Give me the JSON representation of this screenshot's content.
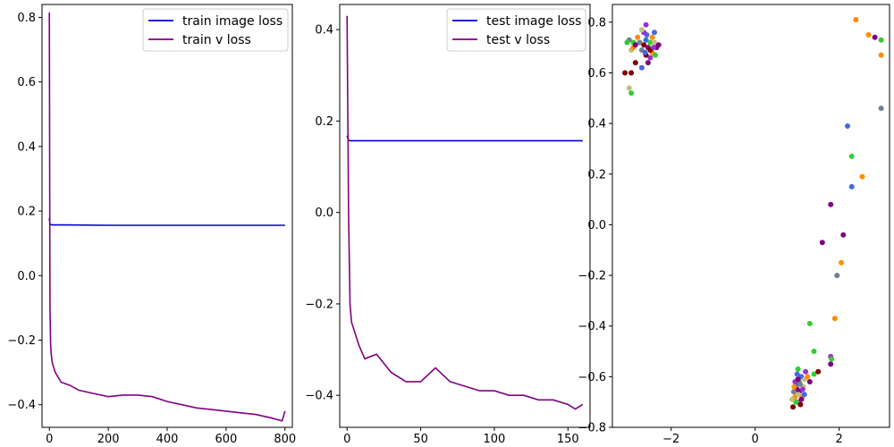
{
  "chart_data": [
    {
      "type": "line",
      "title": "",
      "xlabel": "",
      "ylabel": "",
      "xlim": [
        -25,
        825
      ],
      "ylim": [
        -0.47,
        0.84
      ],
      "xticks": [
        0,
        200,
        400,
        600,
        800
      ],
      "yticks": [
        -0.4,
        -0.2,
        0.0,
        0.2,
        0.4,
        0.6,
        0.8
      ],
      "grid": false,
      "legend": "upper right",
      "series": [
        {
          "name": "train image loss",
          "color": "#0000cc",
          "x": [
            0,
            2,
            5,
            10,
            50,
            200,
            400,
            600,
            800
          ],
          "y": [
            0.178,
            0.16,
            0.158,
            0.157,
            0.157,
            0.156,
            0.156,
            0.156,
            0.156
          ]
        },
        {
          "name": "train v loss",
          "color": "#800080",
          "x": [
            0,
            2,
            4,
            6,
            10,
            20,
            40,
            70,
            100,
            150,
            200,
            250,
            300,
            350,
            400,
            450,
            500,
            550,
            600,
            650,
            700,
            750,
            790,
            800
          ],
          "y": [
            0.815,
            -0.1,
            -0.21,
            -0.24,
            -0.27,
            -0.3,
            -0.33,
            -0.34,
            -0.355,
            -0.365,
            -0.375,
            -0.37,
            -0.37,
            -0.375,
            -0.39,
            -0.4,
            -0.41,
            -0.415,
            -0.42,
            -0.425,
            -0.43,
            -0.44,
            -0.45,
            -0.42
          ]
        }
      ]
    },
    {
      "type": "line",
      "title": "",
      "xlabel": "",
      "ylabel": "",
      "xlim": [
        -5,
        165
      ],
      "ylim": [
        -0.47,
        0.455
      ],
      "xticks": [
        0,
        50,
        100,
        150
      ],
      "yticks": [
        -0.4,
        -0.2,
        0.0,
        0.2,
        0.4
      ],
      "grid": false,
      "legend": "upper right",
      "series": [
        {
          "name": "test image loss",
          "color": "#0000cc",
          "x": [
            0,
            1,
            2,
            5,
            50,
            100,
            160
          ],
          "y": [
            0.168,
            0.158,
            0.157,
            0.157,
            0.157,
            0.157,
            0.157
          ]
        },
        {
          "name": "test v loss",
          "color": "#800080",
          "x": [
            0,
            1,
            2,
            3,
            5,
            8,
            12,
            20,
            30,
            40,
            50,
            60,
            70,
            80,
            90,
            100,
            110,
            120,
            130,
            140,
            150,
            155,
            160
          ],
          "y": [
            0.43,
            0.0,
            -0.2,
            -0.24,
            -0.26,
            -0.29,
            -0.32,
            -0.31,
            -0.35,
            -0.37,
            -0.37,
            -0.34,
            -0.37,
            -0.38,
            -0.39,
            -0.39,
            -0.4,
            -0.4,
            -0.41,
            -0.41,
            -0.42,
            -0.43,
            -0.42
          ]
        }
      ]
    },
    {
      "type": "scatter",
      "title": "",
      "xlabel": "",
      "ylabel": "",
      "xlim": [
        -3.4,
        3.2
      ],
      "ylim": [
        -0.8,
        0.87
      ],
      "xticks": [
        -2,
        0,
        2
      ],
      "yticks": [
        -0.8,
        -0.6,
        -0.4,
        -0.2,
        0.0,
        0.2,
        0.4,
        0.6,
        0.8
      ],
      "grid": false,
      "point_colors": [
        "#800080",
        "#4169e1",
        "#ff8c00",
        "#32cd32",
        "#708090",
        "#800000",
        "#c0c080",
        "#9932cc"
      ],
      "points": [
        {
          "x": -2.55,
          "y": 0.7,
          "c": 0
        },
        {
          "x": -2.6,
          "y": 0.73,
          "c": 1
        },
        {
          "x": -2.45,
          "y": 0.68,
          "c": 2
        },
        {
          "x": -2.5,
          "y": 0.72,
          "c": 3
        },
        {
          "x": -2.7,
          "y": 0.69,
          "c": 4
        },
        {
          "x": -2.65,
          "y": 0.71,
          "c": 5
        },
        {
          "x": -2.4,
          "y": 0.72,
          "c": 6
        },
        {
          "x": -2.5,
          "y": 0.66,
          "c": 7
        },
        {
          "x": -2.35,
          "y": 0.7,
          "c": 0
        },
        {
          "x": -2.58,
          "y": 0.75,
          "c": 1
        },
        {
          "x": -2.8,
          "y": 0.74,
          "c": 2
        },
        {
          "x": -2.9,
          "y": 0.72,
          "c": 3
        },
        {
          "x": -3.0,
          "y": 0.73,
          "c": 4
        },
        {
          "x": -2.95,
          "y": 0.69,
          "c": 6
        },
        {
          "x": -3.1,
          "y": 0.6,
          "c": 5
        },
        {
          "x": -2.95,
          "y": 0.6,
          "c": 5
        },
        {
          "x": -2.85,
          "y": 0.64,
          "c": 5
        },
        {
          "x": -2.7,
          "y": 0.62,
          "c": 1
        },
        {
          "x": -3.0,
          "y": 0.54,
          "c": 6
        },
        {
          "x": -2.95,
          "y": 0.52,
          "c": 3
        },
        {
          "x": -2.6,
          "y": 0.67,
          "c": 5
        },
        {
          "x": -2.65,
          "y": 0.76,
          "c": 7
        },
        {
          "x": -2.6,
          "y": 0.79,
          "c": 7
        },
        {
          "x": -2.4,
          "y": 0.76,
          "c": 1
        },
        {
          "x": -3.05,
          "y": 0.72,
          "c": 3
        },
        {
          "x": -2.9,
          "y": 0.7,
          "c": 2
        },
        {
          "x": -2.3,
          "y": 0.71,
          "c": 0
        },
        {
          "x": -2.75,
          "y": 0.72,
          "c": 4
        },
        {
          "x": -2.55,
          "y": 0.64,
          "c": 0
        },
        {
          "x": -2.45,
          "y": 0.74,
          "c": 2
        },
        {
          "x": -2.5,
          "y": 0.69,
          "c": 5
        },
        {
          "x": -2.7,
          "y": 0.77,
          "c": 6
        },
        {
          "x": -2.85,
          "y": 0.71,
          "c": 0
        },
        {
          "x": -2.38,
          "y": 0.67,
          "c": 3
        },
        {
          "x": -2.62,
          "y": 0.68,
          "c": 1
        },
        {
          "x": -2.42,
          "y": 0.7,
          "c": 7
        },
        {
          "x": 1.0,
          "y": -0.65,
          "c": 0
        },
        {
          "x": 1.1,
          "y": -0.6,
          "c": 1
        },
        {
          "x": 0.95,
          "y": -0.68,
          "c": 2
        },
        {
          "x": 1.05,
          "y": -0.62,
          "c": 3
        },
        {
          "x": 1.0,
          "y": -0.7,
          "c": 4
        },
        {
          "x": 0.9,
          "y": -0.72,
          "c": 5
        },
        {
          "x": 1.15,
          "y": -0.64,
          "c": 6
        },
        {
          "x": 1.2,
          "y": -0.58,
          "c": 7
        },
        {
          "x": 1.05,
          "y": -0.66,
          "c": 0
        },
        {
          "x": 0.98,
          "y": -0.63,
          "c": 1
        },
        {
          "x": 1.12,
          "y": -0.68,
          "c": 2
        },
        {
          "x": 1.02,
          "y": -0.57,
          "c": 3
        },
        {
          "x": 0.92,
          "y": -0.66,
          "c": 4
        },
        {
          "x": 1.08,
          "y": -0.71,
          "c": 5
        },
        {
          "x": 1.18,
          "y": -0.61,
          "c": 6
        },
        {
          "x": 0.95,
          "y": -0.62,
          "c": 7
        },
        {
          "x": 1.1,
          "y": -0.69,
          "c": 0
        },
        {
          "x": 1.0,
          "y": -0.59,
          "c": 1
        },
        {
          "x": 1.25,
          "y": -0.6,
          "c": 2
        },
        {
          "x": 1.3,
          "y": -0.62,
          "c": 0
        },
        {
          "x": 1.4,
          "y": -0.59,
          "c": 3
        },
        {
          "x": 1.5,
          "y": -0.58,
          "c": 5
        },
        {
          "x": 1.03,
          "y": -0.67,
          "c": 6
        },
        {
          "x": 0.97,
          "y": -0.7,
          "c": 3
        },
        {
          "x": 1.13,
          "y": -0.65,
          "c": 7
        },
        {
          "x": 1.07,
          "y": -0.63,
          "c": 4
        },
        {
          "x": 0.93,
          "y": -0.64,
          "c": 2
        },
        {
          "x": 1.17,
          "y": -0.67,
          "c": 1
        },
        {
          "x": 1.02,
          "y": -0.61,
          "c": 0
        },
        {
          "x": 0.88,
          "y": -0.69,
          "c": 6
        },
        {
          "x": 1.3,
          "y": -0.39,
          "c": 3
        },
        {
          "x": 1.4,
          "y": -0.5,
          "c": 3
        },
        {
          "x": 1.8,
          "y": -0.52,
          "c": 7
        },
        {
          "x": 1.8,
          "y": -0.55,
          "c": 0
        },
        {
          "x": 1.82,
          "y": -0.53,
          "c": 3
        },
        {
          "x": 1.9,
          "y": -0.37,
          "c": 2
        },
        {
          "x": 1.6,
          "y": -0.07,
          "c": 0
        },
        {
          "x": 1.8,
          "y": 0.08,
          "c": 0
        },
        {
          "x": 1.95,
          "y": -0.2,
          "c": 4
        },
        {
          "x": 2.05,
          "y": -0.15,
          "c": 2
        },
        {
          "x": 2.1,
          "y": -0.04,
          "c": 0
        },
        {
          "x": 2.2,
          "y": 0.39,
          "c": 1
        },
        {
          "x": 2.3,
          "y": 0.27,
          "c": 3
        },
        {
          "x": 2.3,
          "y": 0.15,
          "c": 1
        },
        {
          "x": 2.55,
          "y": 0.19,
          "c": 2
        },
        {
          "x": 2.4,
          "y": 0.81,
          "c": 2
        },
        {
          "x": 2.7,
          "y": 0.75,
          "c": 2
        },
        {
          "x": 2.85,
          "y": 0.74,
          "c": 0
        },
        {
          "x": 3.0,
          "y": 0.73,
          "c": 3
        },
        {
          "x": 3.0,
          "y": 0.67,
          "c": 2
        },
        {
          "x": 3.0,
          "y": 0.46,
          "c": 4
        }
      ]
    }
  ]
}
